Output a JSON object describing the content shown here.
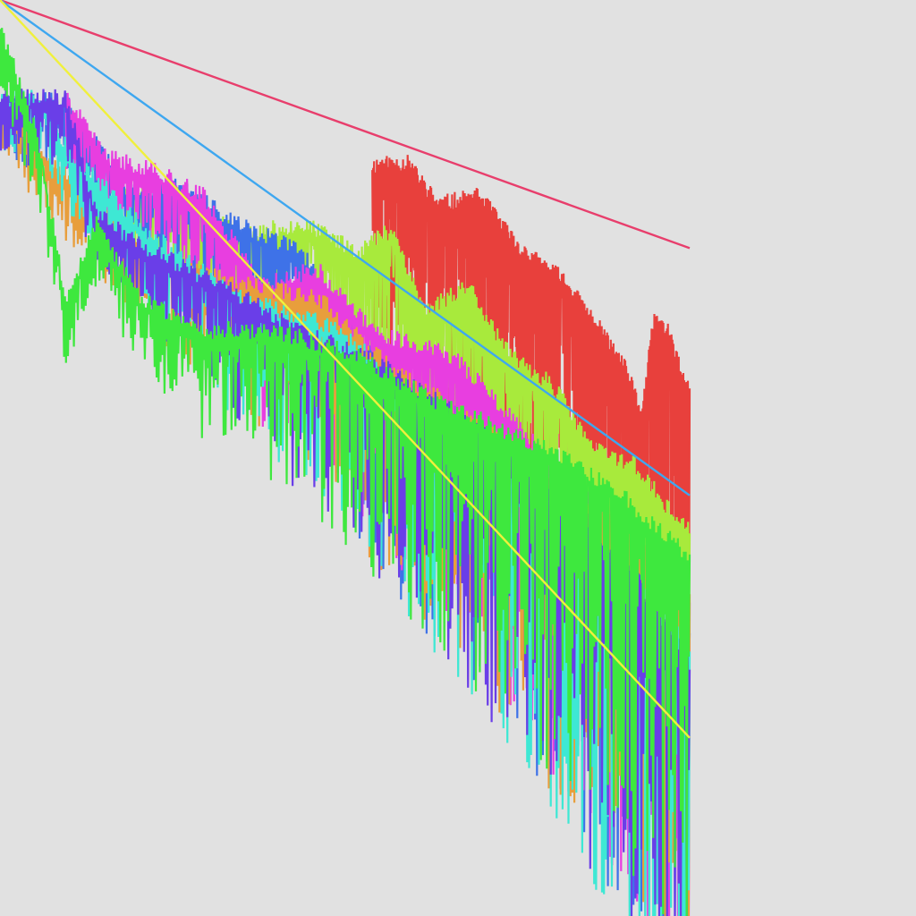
{
  "chart_data": {
    "type": "line",
    "title": "",
    "xlabel": "",
    "ylabel": "",
    "xscale": "log",
    "yscale": "log",
    "xlim": [
      1,
      100000
    ],
    "ylim": [
      1e-06,
      1
    ],
    "grid": false,
    "legend": "none",
    "axes_visible": false,
    "background": "#e1e1e1",
    "reference_lines": [
      {
        "color": "#e83e6c",
        "points": [
          [
            1,
            1
          ],
          [
            100000,
            0.0237
          ]
        ]
      },
      {
        "color": "#3ea7f0",
        "points": [
          [
            1,
            1
          ],
          [
            100000,
            0.000569
          ]
        ]
      },
      {
        "color": "#f0f03c",
        "points": [
          [
            1,
            1
          ],
          [
            100000,
            1.47e-05
          ]
        ]
      }
    ],
    "series": [
      {
        "color": "#e8403c",
        "seed": 11,
        "points": [
          [
            500,
            0.072
          ],
          [
            900,
            0.074
          ],
          [
            1500,
            0.04
          ],
          [
            3000,
            0.045
          ],
          [
            6000,
            0.02
          ],
          [
            12000,
            0.013
          ],
          [
            22000,
            0.0062
          ],
          [
            35000,
            0.0032
          ],
          [
            45000,
            0.0017
          ],
          [
            55000,
            0.007
          ],
          [
            70000,
            0.006
          ],
          [
            90000,
            0.0028
          ],
          [
            100000,
            0.0023
          ]
        ]
      },
      {
        "color": "#a8ea3c",
        "seed": 23,
        "points": [
          [
            8,
            0.05
          ],
          [
            20,
            0.045
          ],
          [
            60,
            0.025
          ],
          [
            150,
            0.03
          ],
          [
            400,
            0.02
          ],
          [
            700,
            0.028
          ],
          [
            1200,
            0.008
          ],
          [
            2500,
            0.012
          ],
          [
            5000,
            0.004
          ],
          [
            10000,
            0.0027
          ],
          [
            20000,
            0.001
          ],
          [
            40000,
            0.0008
          ],
          [
            70000,
            0.0004
          ],
          [
            100000,
            0.0003
          ]
        ]
      },
      {
        "color": "#3e72e8",
        "seed": 37,
        "points": [
          [
            1,
            0.2
          ],
          [
            2,
            0.2
          ],
          [
            3,
            0.2
          ],
          [
            8,
            0.052
          ],
          [
            20,
            0.052
          ],
          [
            60,
            0.028
          ],
          [
            150,
            0.02
          ],
          [
            500,
            0.004
          ],
          [
            1500,
            0.002
          ],
          [
            5000,
            0.001
          ],
          [
            20000,
            0.0004
          ],
          [
            60000,
            0.0001
          ],
          [
            100000,
            6e-05
          ]
        ]
      },
      {
        "color": "#e83ee0",
        "seed": 41,
        "points": [
          [
            3,
            0.2
          ],
          [
            6,
            0.08
          ],
          [
            12,
            0.07
          ],
          [
            30,
            0.045
          ],
          [
            80,
            0.012
          ],
          [
            200,
            0.015
          ],
          [
            500,
            0.006
          ],
          [
            2000,
            0.004
          ],
          [
            8000,
            0.001
          ],
          [
            30000,
            0.0003
          ],
          [
            100000,
            0.0001
          ]
        ]
      },
      {
        "color": "#e89e3c",
        "seed": 53,
        "points": [
          [
            1,
            0.2
          ],
          [
            2,
            0.095
          ],
          [
            10,
            0.02
          ],
          [
            50,
            0.012
          ],
          [
            200,
            0.01
          ],
          [
            800,
            0.003
          ],
          [
            3000,
            0.0015
          ],
          [
            10000,
            0.0007
          ],
          [
            40000,
            0.0003
          ],
          [
            100000,
            0.0001
          ]
        ]
      },
      {
        "color": "#3ee8d4",
        "seed": 67,
        "points": [
          [
            1,
            0.2
          ],
          [
            2,
            0.2
          ],
          [
            3,
            0.095
          ],
          [
            10,
            0.03
          ],
          [
            50,
            0.01
          ],
          [
            300,
            0.006
          ],
          [
            1500,
            0.0015
          ],
          [
            6000,
            0.0008
          ],
          [
            25000,
            0.0002
          ],
          [
            100000,
            5e-05
          ]
        ]
      },
      {
        "color": "#6a3ee8",
        "seed": 71,
        "points": [
          [
            1,
            0.2
          ],
          [
            3,
            0.2
          ],
          [
            5,
            0.035
          ],
          [
            12,
            0.02
          ],
          [
            40,
            0.012
          ],
          [
            150,
            0.006
          ],
          [
            600,
            0.0035
          ],
          [
            2500,
            0.0015
          ],
          [
            10000,
            0.0006
          ],
          [
            40000,
            0.00015
          ],
          [
            100000,
            4e-05
          ]
        ]
      },
      {
        "color": "#3ee83e",
        "seed": 83,
        "points": [
          [
            1,
            0.6
          ],
          [
            2,
            0.09
          ],
          [
            3,
            0.009
          ],
          [
            5,
            0.03
          ],
          [
            10,
            0.01
          ],
          [
            30,
            0.006
          ],
          [
            100,
            0.006
          ],
          [
            400,
            0.004
          ],
          [
            1500,
            0.002
          ],
          [
            6000,
            0.0012
          ],
          [
            25000,
            0.0006
          ],
          [
            100000,
            0.0002
          ]
        ]
      }
    ]
  }
}
